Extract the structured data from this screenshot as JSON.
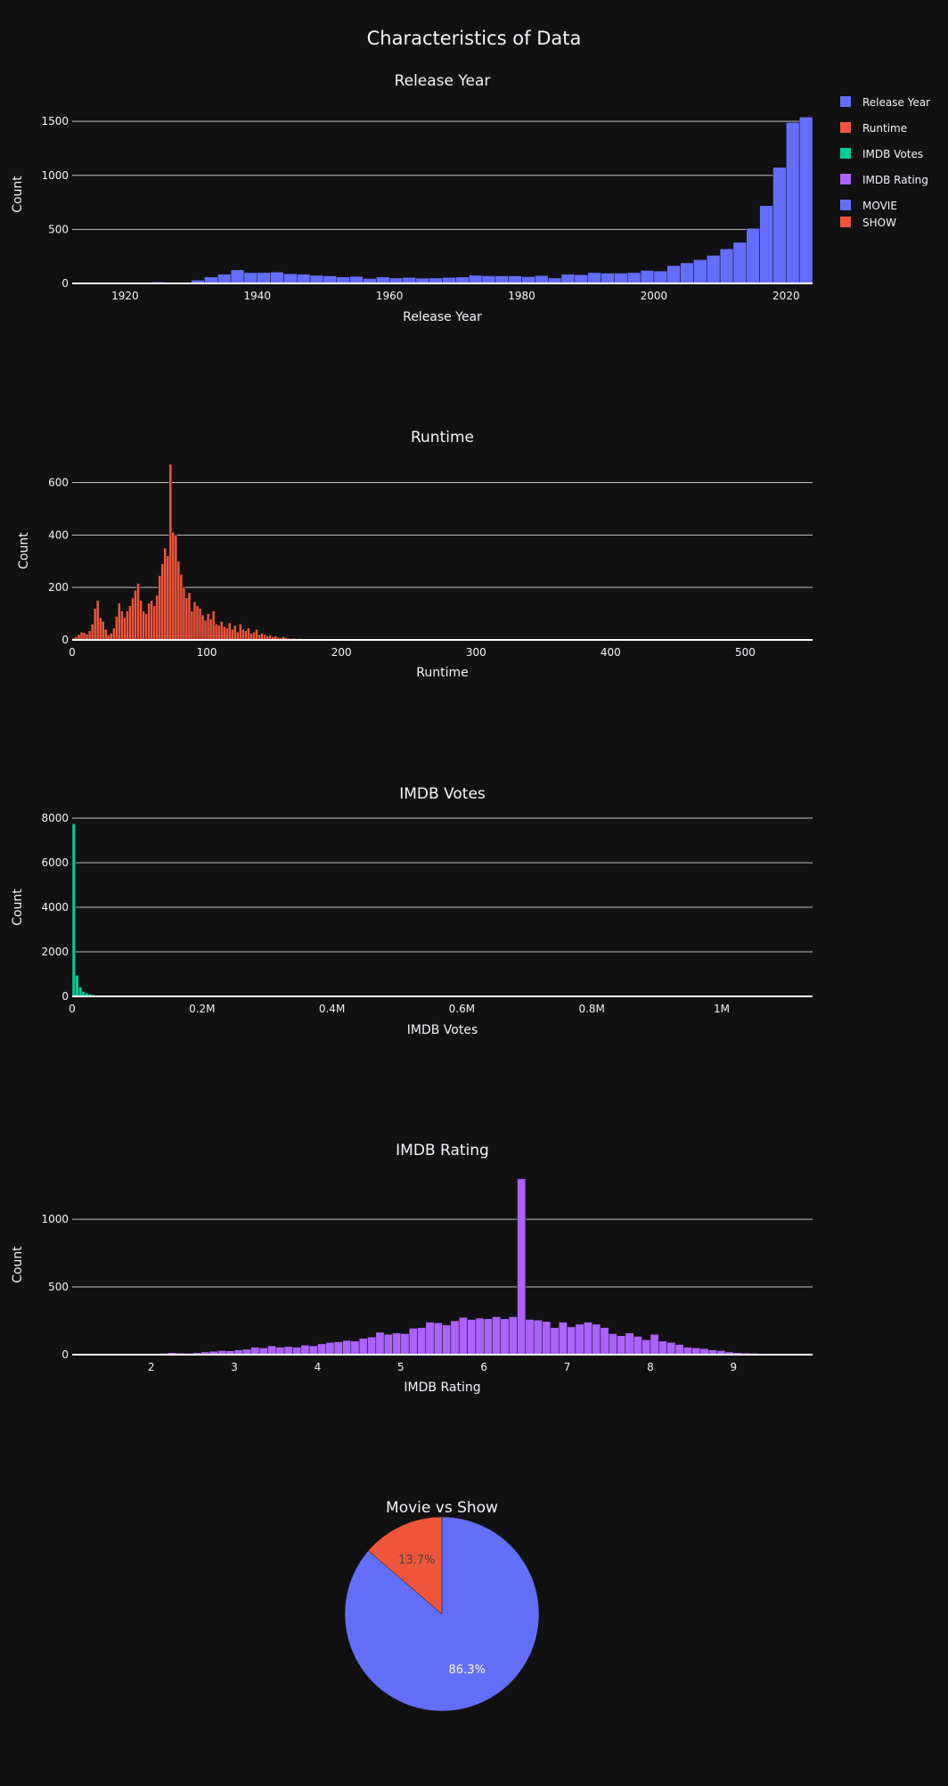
{
  "page_title": "Characteristics of Data",
  "legend_entries": [
    {
      "label": "Release Year",
      "color": "#636efa"
    },
    {
      "label": "Runtime",
      "color": "#ef553b"
    },
    {
      "label": "IMDB Votes",
      "color": "#00cc96"
    },
    {
      "label": "IMDB Rating",
      "color": "#ab63fa"
    },
    {
      "label": "MOVIE",
      "color": "#636efa"
    },
    {
      "label": "SHOW",
      "color": "#ef553b"
    }
  ],
  "chart_data": [
    {
      "type": "bar",
      "title": "Release Year",
      "xlabel": "Release Year",
      "ylabel": "Count",
      "color": "#636efa",
      "grid": true,
      "legend_placement": "right",
      "xlim": [
        1912,
        2024
      ],
      "ylim": [
        0,
        1650
      ],
      "xticks": [
        1920,
        1940,
        1960,
        1980,
        2000,
        2020
      ],
      "yticks": [
        0,
        500,
        1000,
        1500
      ],
      "bin_width": 2,
      "x": [
        1912,
        1914,
        1916,
        1918,
        1920,
        1922,
        1924,
        1926,
        1928,
        1930,
        1932,
        1934,
        1936,
        1938,
        1940,
        1942,
        1944,
        1946,
        1948,
        1950,
        1952,
        1954,
        1956,
        1958,
        1960,
        1962,
        1964,
        1966,
        1968,
        1970,
        1972,
        1974,
        1976,
        1978,
        1980,
        1982,
        1984,
        1986,
        1988,
        1990,
        1992,
        1994,
        1996,
        1998,
        2000,
        2002,
        2004,
        2006,
        2008,
        2010,
        2012,
        2014,
        2016,
        2018,
        2020,
        2022
      ],
      "values": [
        3,
        4,
        5,
        6,
        8,
        8,
        14,
        6,
        6,
        30,
        60,
        85,
        125,
        100,
        100,
        105,
        90,
        85,
        75,
        70,
        60,
        65,
        45,
        60,
        50,
        55,
        48,
        50,
        55,
        60,
        75,
        70,
        70,
        70,
        62,
        72,
        50,
        85,
        80,
        100,
        95,
        95,
        100,
        120,
        115,
        165,
        190,
        220,
        260,
        320,
        380,
        510,
        720,
        1075,
        1490,
        1540
      ]
    },
    {
      "type": "bar",
      "title": "Runtime",
      "xlabel": "Runtime",
      "ylabel": "Count",
      "color": "#ef553b",
      "grid": true,
      "xlim": [
        0,
        550
      ],
      "ylim": [
        0,
        680
      ],
      "xticks": [
        0,
        100,
        200,
        300,
        400,
        500
      ],
      "yticks": [
        0,
        200,
        400,
        600
      ],
      "bin_width": 2,
      "x": [
        0,
        2,
        4,
        6,
        8,
        10,
        12,
        14,
        16,
        18,
        20,
        22,
        24,
        26,
        28,
        30,
        32,
        34,
        36,
        38,
        40,
        42,
        44,
        46,
        48,
        50,
        52,
        54,
        56,
        58,
        60,
        62,
        64,
        66,
        68,
        70,
        72,
        74,
        76,
        78,
        80,
        82,
        84,
        86,
        88,
        90,
        92,
        94,
        96,
        98,
        100,
        102,
        104,
        106,
        108,
        110,
        112,
        114,
        116,
        118,
        120,
        122,
        124,
        126,
        128,
        130,
        132,
        134,
        136,
        138,
        140,
        142,
        144,
        146,
        148,
        150,
        152,
        154,
        156,
        158,
        160,
        162,
        164,
        166,
        168,
        170,
        172,
        174,
        176,
        178,
        180,
        182,
        184,
        186,
        188,
        190,
        192,
        194,
        196,
        198,
        200,
        210,
        220,
        230,
        240,
        250,
        260,
        270,
        280,
        290,
        300,
        310,
        320,
        330,
        340,
        350,
        360,
        380,
        400,
        450,
        500,
        540
      ],
      "values": [
        8,
        12,
        20,
        30,
        28,
        22,
        35,
        60,
        120,
        150,
        85,
        70,
        40,
        18,
        25,
        45,
        90,
        140,
        110,
        85,
        110,
        130,
        160,
        190,
        215,
        150,
        110,
        100,
        140,
        150,
        130,
        170,
        245,
        290,
        350,
        320,
        670,
        410,
        400,
        300,
        250,
        200,
        160,
        180,
        110,
        145,
        130,
        120,
        95,
        75,
        100,
        80,
        110,
        60,
        55,
        70,
        50,
        45,
        65,
        40,
        55,
        30,
        60,
        40,
        35,
        45,
        25,
        30,
        40,
        20,
        25,
        20,
        15,
        18,
        12,
        15,
        10,
        8,
        12,
        8,
        6,
        5,
        6,
        4,
        5,
        4,
        3,
        3,
        4,
        3,
        2,
        3,
        2,
        2,
        3,
        2,
        1,
        2,
        1,
        2,
        3,
        2,
        2,
        1,
        2,
        1,
        1,
        1,
        1,
        1,
        2,
        1,
        1,
        1,
        1,
        1,
        1,
        1,
        1,
        1,
        1,
        1
      ]
    },
    {
      "type": "bar",
      "title": "IMDB Votes",
      "xlabel": "IMDB Votes",
      "ylabel": "Count",
      "color": "#00cc96",
      "grid": true,
      "xlim": [
        0,
        1140000
      ],
      "ylim": [
        0,
        8000
      ],
      "xticks": [
        0,
        200000,
        400000,
        600000,
        800000,
        1000000
      ],
      "xtick_labels": [
        "0",
        "0.2M",
        "0.4M",
        "0.6M",
        "0.8M",
        "1M"
      ],
      "yticks": [
        0,
        2000,
        4000,
        6000,
        8000
      ],
      "bin_width": 5000,
      "x": [
        0,
        5000,
        10000,
        15000,
        20000,
        25000,
        30000,
        35000,
        40000,
        45000,
        50000,
        60000,
        70000,
        80000,
        100000,
        150000,
        200000,
        300000,
        500000,
        700000,
        1000000
      ],
      "values": [
        7750,
        950,
        420,
        220,
        150,
        100,
        70,
        50,
        40,
        30,
        25,
        20,
        15,
        12,
        10,
        8,
        6,
        4,
        2,
        1,
        1
      ]
    },
    {
      "type": "bar",
      "title": "IMDB Rating",
      "xlabel": "IMDB Rating",
      "ylabel": "Count",
      "color": "#ab63fa",
      "grid": true,
      "xlim": [
        1.05,
        9.95
      ],
      "ylim": [
        0,
        1330
      ],
      "xticks": [
        2,
        3,
        4,
        5,
        6,
        7,
        8,
        9
      ],
      "yticks": [
        0,
        500,
        1000
      ],
      "bin_width": 0.1,
      "x": [
        1.0,
        1.1,
        1.2,
        1.3,
        1.4,
        1.5,
        1.6,
        1.7,
        1.8,
        1.9,
        2.0,
        2.1,
        2.2,
        2.3,
        2.4,
        2.5,
        2.6,
        2.7,
        2.8,
        2.9,
        3.0,
        3.1,
        3.2,
        3.3,
        3.4,
        3.5,
        3.6,
        3.7,
        3.8,
        3.9,
        4.0,
        4.1,
        4.2,
        4.3,
        4.4,
        4.5,
        4.6,
        4.7,
        4.8,
        4.9,
        5.0,
        5.1,
        5.2,
        5.3,
        5.4,
        5.5,
        5.6,
        5.7,
        5.8,
        5.9,
        6.0,
        6.1,
        6.2,
        6.3,
        6.4,
        6.5,
        6.6,
        6.7,
        6.8,
        6.9,
        7.0,
        7.1,
        7.2,
        7.3,
        7.4,
        7.5,
        7.6,
        7.7,
        7.8,
        7.9,
        8.0,
        8.1,
        8.2,
        8.3,
        8.4,
        8.5,
        8.6,
        8.7,
        8.8,
        8.9,
        9.0,
        9.1,
        9.2,
        9.3,
        9.4,
        9.5,
        9.6,
        9.7,
        9.8,
        9.9
      ],
      "values": [
        2,
        2,
        3,
        3,
        4,
        3,
        5,
        4,
        6,
        5,
        8,
        10,
        15,
        12,
        10,
        14,
        20,
        25,
        30,
        28,
        35,
        40,
        55,
        50,
        65,
        55,
        60,
        55,
        70,
        65,
        80,
        90,
        95,
        105,
        100,
        120,
        130,
        165,
        150,
        160,
        155,
        195,
        200,
        240,
        235,
        220,
        250,
        275,
        260,
        270,
        265,
        280,
        265,
        280,
        1300,
        260,
        255,
        245,
        200,
        240,
        205,
        225,
        240,
        225,
        200,
        155,
        140,
        160,
        135,
        110,
        150,
        100,
        90,
        75,
        55,
        50,
        45,
        35,
        30,
        20,
        15,
        12,
        10,
        8,
        6,
        5,
        4,
        3,
        2,
        2
      ]
    },
    {
      "type": "pie",
      "title": "Movie vs Show",
      "labels": [
        "MOVIE",
        "SHOW"
      ],
      "values": [
        86.3,
        13.7
      ],
      "value_labels": [
        "86.3%",
        "13.7%"
      ],
      "colors": [
        "#636efa",
        "#ef553b"
      ]
    }
  ]
}
